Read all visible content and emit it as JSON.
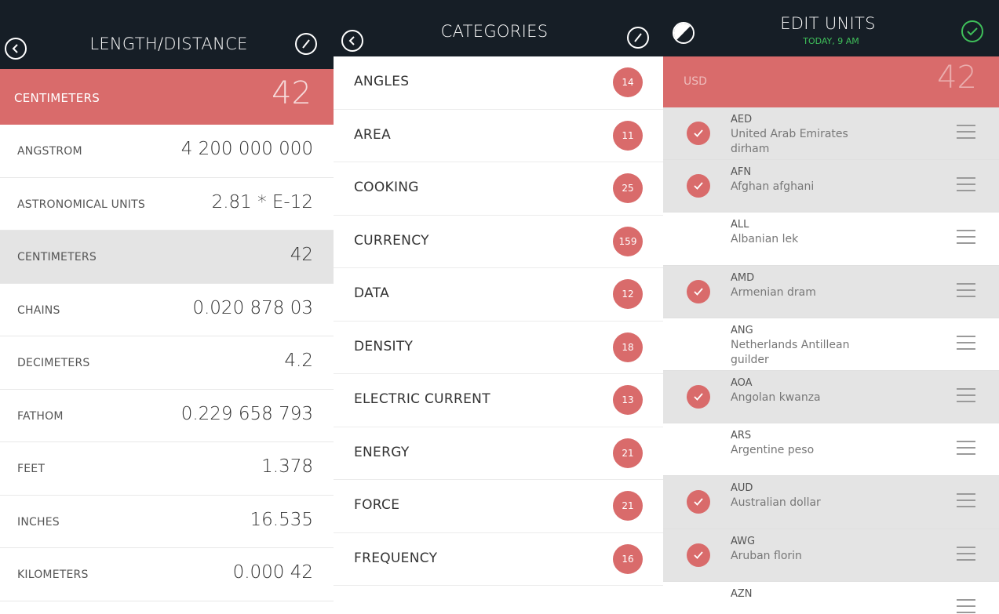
{
  "length_panel": {
    "title": "LENGTH/DISTANCE",
    "selected": {
      "name": "CENTIMETERS",
      "value": "42"
    },
    "rows": [
      {
        "name": "ANGSTROM",
        "value": "4 200 000 000"
      },
      {
        "name": "ASTRONOMICAL UNITS",
        "value": "2.81 * E-12"
      },
      {
        "name": "CENTIMETERS",
        "value": "42",
        "selected": true
      },
      {
        "name": "CHAINS",
        "value": "0.020 878 03"
      },
      {
        "name": "DECIMETERS",
        "value": "4.2"
      },
      {
        "name": "FATHOM",
        "value": "0.229 658 793"
      },
      {
        "name": "FEET",
        "value": "1.378"
      },
      {
        "name": "INCHES",
        "value": "16.535"
      },
      {
        "name": "KILOMETERS",
        "value": "0.000 42"
      }
    ]
  },
  "categories_panel": {
    "title": "CATEGORIES",
    "items": [
      {
        "name": "ANGLES",
        "count": "14"
      },
      {
        "name": "AREA",
        "count": "11"
      },
      {
        "name": "COOKING",
        "count": "25"
      },
      {
        "name": "CURRENCY",
        "count": "159"
      },
      {
        "name": "DATA",
        "count": "12"
      },
      {
        "name": "DENSITY",
        "count": "18"
      },
      {
        "name": "ELECTRIC CURRENT",
        "count": "13"
      },
      {
        "name": "ENERGY",
        "count": "21"
      },
      {
        "name": "FORCE",
        "count": "21"
      },
      {
        "name": "FREQUENCY",
        "count": "16"
      }
    ]
  },
  "edit_panel": {
    "title": "EDIT UNITS",
    "subtitle": "TODAY, 9 AM",
    "selected": {
      "name": "USD",
      "value": "42"
    },
    "units": [
      {
        "code": "AED",
        "name": "United Arab Emirates dirham",
        "checked": true
      },
      {
        "code": "AFN",
        "name": "Afghan afghani",
        "checked": true
      },
      {
        "code": "ALL",
        "name": "Albanian lek",
        "checked": false
      },
      {
        "code": "AMD",
        "name": "Armenian dram",
        "checked": true
      },
      {
        "code": "ANG",
        "name": "Netherlands Antillean guilder",
        "checked": false
      },
      {
        "code": "AOA",
        "name": "Angolan kwanza",
        "checked": true
      },
      {
        "code": "ARS",
        "name": "Argentine peso",
        "checked": false
      },
      {
        "code": "AUD",
        "name": "Australian dollar",
        "checked": true
      },
      {
        "code": "AWG",
        "name": "Aruban florin",
        "checked": true
      },
      {
        "code": "AZN",
        "name": "",
        "checked": false
      }
    ]
  },
  "colors": {
    "accent": "#d96b6b",
    "header": "#161e26",
    "confirm": "#3fbf5a",
    "selected_row": "#e4e4e4"
  },
  "icons": {
    "back": "chevron-left-icon",
    "edit": "pencil-icon",
    "theme": "contrast-icon",
    "confirm": "checkmark-icon",
    "reorder": "drag-handle-icon"
  }
}
